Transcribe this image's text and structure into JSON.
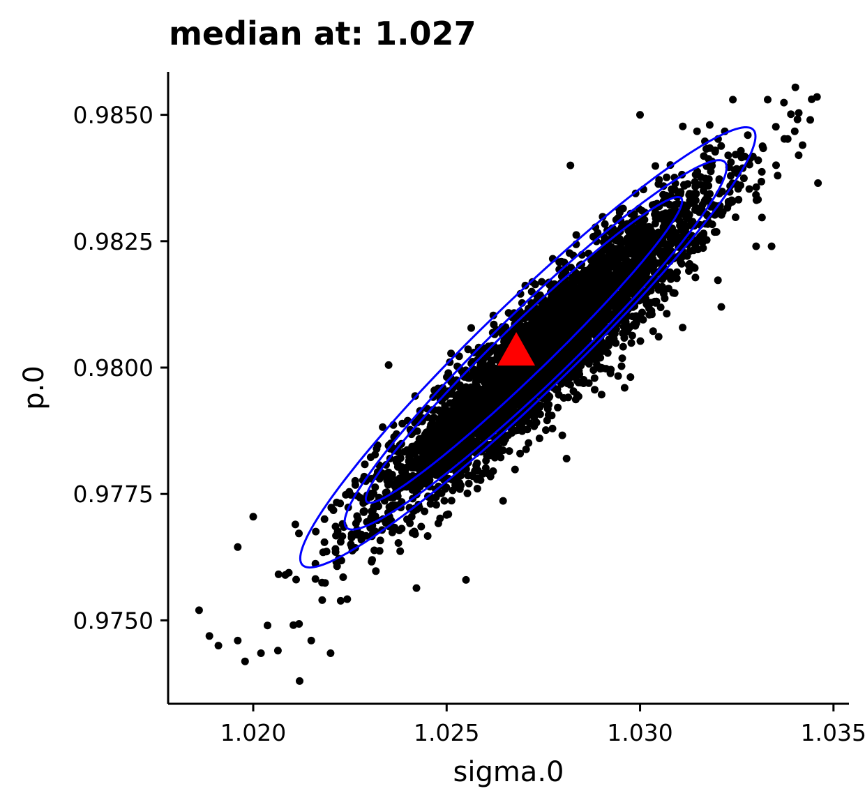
{
  "chart_data": {
    "type": "scatter",
    "title": "median at: 1.027",
    "xlabel": "sigma.0",
    "ylabel": "p.0",
    "xlim": [
      1.0178,
      1.0354
    ],
    "ylim": [
      0.97335,
      0.98585
    ],
    "xticks": [
      1.02,
      1.025,
      1.03,
      1.035
    ],
    "xtick_labels": [
      "1.020",
      "1.025",
      "1.030",
      "1.035"
    ],
    "yticks": [
      0.975,
      0.9775,
      0.98,
      0.9825,
      0.985
    ],
    "ytick_labels": [
      "0.9750",
      "0.9775",
      "0.9800",
      "0.9825",
      "0.9850"
    ],
    "grid": false,
    "legend": "none",
    "point_color": "#000000",
    "contour_color": "#0000ff",
    "median_color": "#ff0000",
    "median_point": {
      "x": 1.0268,
      "y": 0.98033,
      "marker": "triangle"
    },
    "cloud": {
      "n_points": 4000,
      "center_x": 1.02755,
      "center_y": 0.98035,
      "sd_x": 0.00215,
      "sd_y": 0.00158,
      "correlation": 0.93
    },
    "contours": [
      {
        "level": 0.5,
        "center_x": 1.027,
        "center_y": 0.98035,
        "semi_major": 0.00565,
        "semi_minor": 0.00065,
        "angle": 0.768
      },
      {
        "level": 0.8,
        "center_x": 1.0273,
        "center_y": 0.98045,
        "semi_major": 0.0068,
        "semi_minor": 0.00097,
        "angle": 0.768
      },
      {
        "level": 0.9,
        "center_x": 1.0271,
        "center_y": 0.9804,
        "semi_major": 0.0081,
        "semi_minor": 0.00118,
        "angle": 0.768
      }
    ],
    "outliers": [
      {
        "x": 1.0186,
        "y": 0.9752
      },
      {
        "x": 1.0191,
        "y": 0.9745
      },
      {
        "x": 1.0196,
        "y": 0.9746
      },
      {
        "x": 1.0202,
        "y": 0.97435
      },
      {
        "x": 1.0212,
        "y": 0.9738
      },
      {
        "x": 1.022,
        "y": 0.97435
      },
      {
        "x": 1.0215,
        "y": 0.9746
      },
      {
        "x": 1.0196,
        "y": 0.97645
      },
      {
        "x": 1.02,
        "y": 0.97705
      },
      {
        "x": 1.0346,
        "y": 0.98365
      },
      {
        "x": 1.0344,
        "y": 0.9849
      },
      {
        "x": 1.0342,
        "y": 0.9844
      },
      {
        "x": 1.0341,
        "y": 0.9842
      },
      {
        "x": 1.0333,
        "y": 0.9853
      },
      {
        "x": 1.0334,
        "y": 0.9824
      },
      {
        "x": 1.033,
        "y": 0.9824
      },
      {
        "x": 1.0321,
        "y": 0.9812
      },
      {
        "x": 1.03,
        "y": 0.985
      },
      {
        "x": 1.0296,
        "y": 0.9796
      },
      {
        "x": 1.0281,
        "y": 0.9782
      },
      {
        "x": 1.0269,
        "y": 0.9783
      },
      {
        "x": 1.0255,
        "y": 0.9758
      },
      {
        "x": 1.0235,
        "y": 0.98005
      },
      {
        "x": 1.0274,
        "y": 0.9786
      },
      {
        "x": 1.0282,
        "y": 0.984
      },
      {
        "x": 1.0318,
        "y": 0.9848
      },
      {
        "x": 1.0324,
        "y": 0.9853
      }
    ]
  }
}
